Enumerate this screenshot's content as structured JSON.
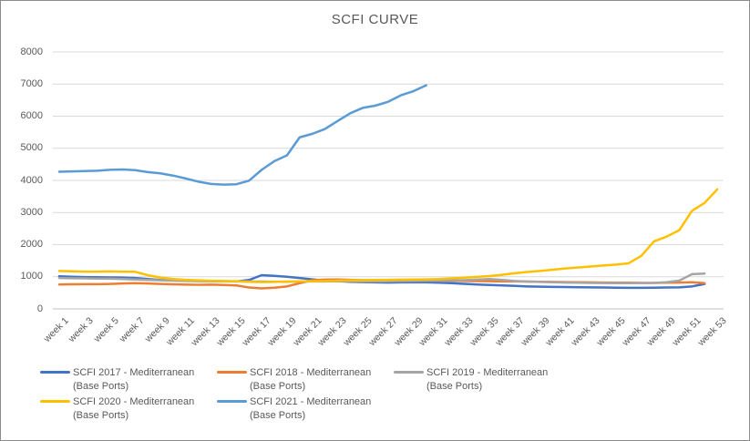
{
  "chart_data": {
    "type": "line",
    "title": "SCFI CURVE",
    "xlabel": "",
    "ylabel": "",
    "ylim": [
      0,
      8000
    ],
    "y_ticks": [
      0,
      1000,
      2000,
      3000,
      4000,
      5000,
      6000,
      7000,
      8000
    ],
    "weeks_total": 53,
    "x_tick_labels": [
      "week 1",
      "week 3",
      "week 5",
      "week 7",
      "week 9",
      "week 11",
      "week 13",
      "week 15",
      "week 17",
      "week 19",
      "week 21",
      "week 23",
      "week 25",
      "week 27",
      "week 29",
      "week 31",
      "week 33",
      "week 35",
      "week 37",
      "week 39",
      "week 41",
      "week 43",
      "week 45",
      "week 47",
      "week 49",
      "week 51",
      "week 53"
    ],
    "grid": true,
    "legend_position": "bottom",
    "series": [
      {
        "name": "SCFI 2017 - Mediterranean (Base Ports)",
        "color": "#4472C4",
        "first_week": 1,
        "values": [
          1015,
          1000,
          990,
          985,
          980,
          975,
          960,
          930,
          900,
          885,
          875,
          870,
          865,
          860,
          855,
          900,
          1050,
          1030,
          1000,
          960,
          920,
          880,
          860,
          845,
          835,
          825,
          820,
          825,
          830,
          825,
          815,
          800,
          780,
          760,
          745,
          730,
          715,
          700,
          690,
          685,
          680,
          675,
          670,
          665,
          660,
          655,
          655,
          660,
          665,
          670,
          700,
          775
        ]
      },
      {
        "name": "SCFI 2018 - Mediterranean (Base Ports)",
        "color": "#ED7D31",
        "first_week": 1,
        "values": [
          760,
          765,
          770,
          770,
          775,
          790,
          800,
          790,
          775,
          765,
          755,
          750,
          755,
          745,
          730,
          665,
          640,
          660,
          700,
          800,
          890,
          910,
          915,
          905,
          895,
          890,
          885,
          890,
          895,
          890,
          880,
          875,
          870,
          865,
          860,
          855,
          855,
          850,
          845,
          840,
          835,
          830,
          825,
          820,
          815,
          815,
          810,
          810,
          815,
          820,
          830,
          800
        ]
      },
      {
        "name": "SCFI 2019 - Mediterranean (Base Ports)",
        "color": "#A5A5A5",
        "first_week": 1,
        "values": [
          960,
          955,
          950,
          945,
          940,
          930,
          915,
          900,
          890,
          880,
          870,
          865,
          860,
          860,
          855,
          850,
          850,
          845,
          845,
          850,
          855,
          855,
          860,
          860,
          855,
          855,
          860,
          865,
          870,
          875,
          880,
          885,
          895,
          910,
          930,
          900,
          870,
          850,
          840,
          830,
          820,
          815,
          810,
          805,
          800,
          800,
          805,
          810,
          830,
          880,
          1080,
          1100
        ]
      },
      {
        "name": "SCFI 2020 - Mediterranean (Base Ports)",
        "color": "#FFC000",
        "first_week": 1,
        "values": [
          1180,
          1170,
          1160,
          1160,
          1165,
          1160,
          1155,
          1050,
          975,
          930,
          905,
          890,
          875,
          865,
          860,
          845,
          835,
          840,
          850,
          855,
          860,
          870,
          880,
          890,
          895,
          900,
          905,
          910,
          915,
          920,
          930,
          950,
          970,
          995,
          1020,
          1060,
          1110,
          1150,
          1180,
          1220,
          1260,
          1290,
          1320,
          1350,
          1380,
          1420,
          1650,
          2100,
          2250,
          2450,
          3050,
          3300,
          3720
        ]
      },
      {
        "name": "SCFI 2021 - Mediterranean (Base Ports)",
        "color": "#5B9BD5",
        "first_week": 1,
        "values": [
          4270,
          4280,
          4290,
          4300,
          4330,
          4340,
          4320,
          4260,
          4220,
          4150,
          4060,
          3960,
          3890,
          3870,
          3880,
          3990,
          4330,
          4600,
          4780,
          5340,
          5450,
          5600,
          5850,
          6090,
          6260,
          6330,
          6450,
          6650,
          6780,
          6960
        ]
      }
    ]
  },
  "legend": {
    "items": [
      {
        "line1": "SCFI 2017 - Mediterranean",
        "line2": "(Base Ports)",
        "color": "#4472C4",
        "row": 0,
        "col": 0
      },
      {
        "line1": "SCFI 2018 - Mediterranean",
        "line2": "(Base Ports)",
        "color": "#ED7D31",
        "row": 0,
        "col": 1
      },
      {
        "line1": "SCFI 2019 - Mediterranean",
        "line2": "(Base Ports)",
        "color": "#A5A5A5",
        "row": 0,
        "col": 2
      },
      {
        "line1": "SCFI 2020 - Mediterranean",
        "line2": "(Base Ports)",
        "color": "#FFC000",
        "row": 1,
        "col": 0
      },
      {
        "line1": "SCFI 2021 - Mediterranean",
        "line2": "(Base Ports)",
        "color": "#5B9BD5",
        "row": 1,
        "col": 1
      }
    ]
  },
  "style": {
    "gridline_color": "#D9D9D9",
    "axis_line_color": "#BFBFBF",
    "text_color": "#595959",
    "background": "#FFFFFF"
  }
}
